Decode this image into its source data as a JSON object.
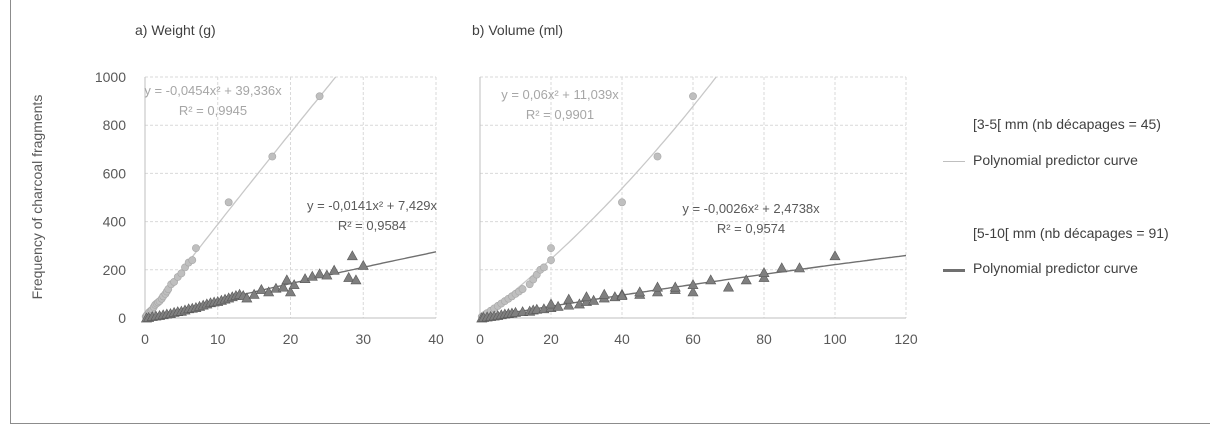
{
  "ylabel": "Frequency of charcoal fragments",
  "legend": {
    "items": [
      {
        "label": "[3-5[ mm (nb décapages = 45)",
        "marker": "none"
      },
      {
        "label": "Polynomial predictor curve",
        "marker": "line",
        "color": "#bfbfbf"
      },
      {
        "label": "[5-10[ mm (nb décapages = 91)",
        "marker": "none"
      },
      {
        "label": "Polynomial predictor curve",
        "marker": "line",
        "color": "#707070"
      }
    ]
  },
  "chart_data": [
    {
      "type": "scatter",
      "title": "a) Weight (g)",
      "ylabel": "Frequency of charcoal fragments",
      "xlim": [
        0,
        40
      ],
      "ylim": [
        0,
        1000
      ],
      "xticks": [
        "0",
        "10",
        "20",
        "30",
        "40"
      ],
      "yticks": [
        "0",
        "200",
        "400",
        "600",
        "800",
        "1000"
      ],
      "grid": true,
      "series": [
        {
          "name": "[3-5[ mm (nb décapages = 45)",
          "marker": "circle",
          "color": "#bfbfbf",
          "points": [
            [
              0.1,
              5
            ],
            [
              0.2,
              10
            ],
            [
              0.3,
              14
            ],
            [
              0.5,
              20
            ],
            [
              0.6,
              25
            ],
            [
              0.8,
              30
            ],
            [
              1,
              35
            ],
            [
              1.2,
              45
            ],
            [
              1.4,
              55
            ],
            [
              1.6,
              60
            ],
            [
              1.8,
              65
            ],
            [
              2,
              70
            ],
            [
              2.3,
              80
            ],
            [
              2.5,
              90
            ],
            [
              2.8,
              100
            ],
            [
              3,
              110
            ],
            [
              3.2,
              120
            ],
            [
              3.6,
              140
            ],
            [
              4,
              150
            ],
            [
              4.5,
              170
            ],
            [
              5,
              185
            ],
            [
              5.5,
              210
            ],
            [
              6,
              230
            ],
            [
              6.5,
              240
            ],
            [
              7,
              290
            ],
            [
              11.5,
              480
            ],
            [
              17.5,
              670
            ],
            [
              24,
              920
            ]
          ],
          "fit": {
            "a": -0.0454,
            "b": 39.336,
            "equation": "y = -0,0454x² + 39,336x",
            "r2": "R² = 0,9945"
          }
        },
        {
          "name": "[5-10[ mm (nb décapages = 91)",
          "marker": "triangle",
          "color": "#7f7f7f",
          "points": [
            [
              0.2,
              2
            ],
            [
              0.5,
              4
            ],
            [
              1,
              8
            ],
            [
              1.5,
              10
            ],
            [
              2,
              12
            ],
            [
              2.5,
              15
            ],
            [
              3,
              18
            ],
            [
              3.5,
              20
            ],
            [
              4,
              25
            ],
            [
              4.5,
              28
            ],
            [
              5,
              30
            ],
            [
              5.5,
              35
            ],
            [
              6,
              40
            ],
            [
              6.5,
              42
            ],
            [
              7,
              45
            ],
            [
              7.5,
              50
            ],
            [
              8,
              55
            ],
            [
              8.5,
              60
            ],
            [
              9,
              65
            ],
            [
              9.5,
              68
            ],
            [
              10,
              70
            ],
            [
              10.5,
              75
            ],
            [
              11,
              80
            ],
            [
              11.5,
              85
            ],
            [
              12,
              90
            ],
            [
              12.5,
              95
            ],
            [
              13,
              100
            ],
            [
              13.5,
              95
            ],
            [
              14,
              85
            ],
            [
              15,
              100
            ],
            [
              16,
              120
            ],
            [
              17,
              110
            ],
            [
              18,
              125
            ],
            [
              19,
              130
            ],
            [
              19.5,
              160
            ],
            [
              20,
              110
            ],
            [
              20.5,
              140
            ],
            [
              22,
              165
            ],
            [
              23,
              175
            ],
            [
              24,
              185
            ],
            [
              25,
              180
            ],
            [
              26,
              200
            ],
            [
              28,
              170
            ],
            [
              28.5,
              260
            ],
            [
              29,
              160
            ],
            [
              30,
              220
            ]
          ],
          "fit": {
            "a": -0.0141,
            "b": 7.429,
            "equation": "y = -0,0141x² + 7,429x",
            "r2": "R² = 0,9584"
          }
        }
      ]
    },
    {
      "type": "scatter",
      "title": "b) Volume (ml)",
      "xlim": [
        0,
        120
      ],
      "ylim": [
        0,
        1000
      ],
      "xticks": [
        "0",
        "20",
        "40",
        "60",
        "80",
        "100",
        "120"
      ],
      "grid": true,
      "series": [
        {
          "name": "[3-5[ mm (nb décapages = 45)",
          "marker": "circle",
          "color": "#bfbfbf",
          "points": [
            [
              0.5,
              5
            ],
            [
              1,
              10
            ],
            [
              1.5,
              15
            ],
            [
              2,
              20
            ],
            [
              3,
              30
            ],
            [
              4,
              40
            ],
            [
              5,
              50
            ],
            [
              6,
              60
            ],
            [
              7,
              70
            ],
            [
              8,
              80
            ],
            [
              9,
              90
            ],
            [
              10,
              100
            ],
            [
              11,
              110
            ],
            [
              12,
              120
            ],
            [
              14,
              140
            ],
            [
              15,
              160
            ],
            [
              16,
              180
            ],
            [
              17,
              200
            ],
            [
              18,
              210
            ],
            [
              20,
              240
            ],
            [
              20,
              290
            ],
            [
              40,
              480
            ],
            [
              50,
              670
            ],
            [
              60,
              920
            ]
          ],
          "fit": {
            "a": 0.06,
            "b": 11.039,
            "equation": "y = 0,06x² + 11,039x",
            "r2": "R² = 0,9901"
          }
        },
        {
          "name": "[5-10[ mm (nb décapages = 91)",
          "marker": "triangle",
          "color": "#7f7f7f",
          "points": [
            [
              0.5,
              2
            ],
            [
              1,
              4
            ],
            [
              2,
              6
            ],
            [
              3,
              8
            ],
            [
              4,
              10
            ],
            [
              5,
              12
            ],
            [
              6,
              15
            ],
            [
              7,
              18
            ],
            [
              8,
              20
            ],
            [
              9,
              22
            ],
            [
              10,
              25
            ],
            [
              12,
              28
            ],
            [
              14,
              30
            ],
            [
              15,
              35
            ],
            [
              16,
              38
            ],
            [
              18,
              40
            ],
            [
              20,
              45
            ],
            [
              20,
              60
            ],
            [
              22,
              50
            ],
            [
              25,
              55
            ],
            [
              25,
              80
            ],
            [
              28,
              60
            ],
            [
              30,
              70
            ],
            [
              30,
              90
            ],
            [
              32,
              75
            ],
            [
              35,
              85
            ],
            [
              35,
              100
            ],
            [
              38,
              90
            ],
            [
              40,
              100
            ],
            [
              40,
              95
            ],
            [
              45,
              100
            ],
            [
              45,
              110
            ],
            [
              50,
              110
            ],
            [
              50,
              130
            ],
            [
              55,
              120
            ],
            [
              55,
              130
            ],
            [
              60,
              110
            ],
            [
              60,
              140
            ],
            [
              65,
              160
            ],
            [
              70,
              130
            ],
            [
              75,
              160
            ],
            [
              80,
              170
            ],
            [
              80,
              190
            ],
            [
              85,
              210
            ],
            [
              90,
              210
            ],
            [
              100,
              260
            ]
          ],
          "fit": {
            "a": -0.0026,
            "b": 2.4738,
            "equation": "y = -0,0026x² + 2,4738x",
            "r2": "R² = 0,9574"
          }
        }
      ]
    }
  ]
}
